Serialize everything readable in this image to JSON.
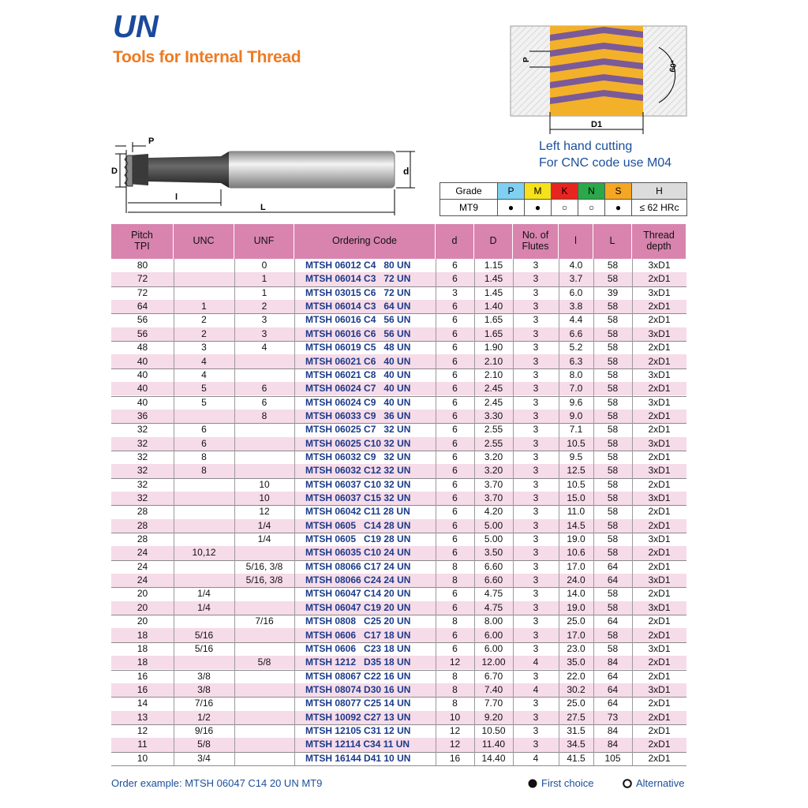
{
  "header": {
    "title": "UN",
    "subtitle": "Tools for Internal Thread"
  },
  "tool_drawing": {
    "labels": {
      "p": "P",
      "D": "D",
      "l": "l",
      "L": "L",
      "d": "d"
    }
  },
  "thread_drawing": {
    "labels": {
      "p": "P",
      "angle": "60°",
      "d1": "D1"
    }
  },
  "notes": [
    "Left hand cutting",
    "For CNC code use M04"
  ],
  "grade_table": {
    "header": [
      "Grade",
      "P",
      "M",
      "K",
      "N",
      "S",
      "H"
    ],
    "rows": [
      [
        "MT9",
        "●",
        "●",
        "○",
        "○",
        "●",
        "≤ 62 HRc"
      ]
    ]
  },
  "table": {
    "columns": [
      "Pitch\nTPI",
      "UNC",
      "UNF",
      "Ordering Code",
      "d",
      "D",
      "No. of\nFlutes",
      "l",
      "L",
      "Thread\ndepth"
    ],
    "rows": [
      [
        "80",
        null,
        "0",
        "MTSH 06012 C4   80 UN",
        "6",
        "1.15",
        "3",
        "4.0",
        "58",
        "3xD1"
      ],
      [
        "72",
        null,
        "1",
        "MTSH 06014 C3   72 UN",
        "6",
        "1.45",
        "3",
        "3.7",
        "58",
        "2xD1"
      ],
      [
        "72",
        null,
        "1",
        "MTSH 03015 C6   72 UN",
        "3",
        "1.45",
        "3",
        "6.0",
        "39",
        "3xD1"
      ],
      [
        "64",
        "1",
        "2",
        "MTSH 06014 C3   64 UN",
        "6",
        "1.40",
        "3",
        "3.8",
        "58",
        "2xD1"
      ],
      [
        "56",
        "2",
        "3",
        "MTSH 06016 C4   56 UN",
        "6",
        "1.65",
        "3",
        "4.4",
        "58",
        "2xD1"
      ],
      [
        "56",
        "2",
        "3",
        "MTSH 06016 C6   56 UN",
        "6",
        "1.65",
        "3",
        "6.6",
        "58",
        "3xD1"
      ],
      [
        "48",
        "3",
        "4",
        "MTSH 06019 C5   48 UN",
        "6",
        "1.90",
        "3",
        "5.2",
        "58",
        "2xD1"
      ],
      [
        "40",
        "4",
        null,
        "MTSH 06021 C6   40 UN",
        "6",
        "2.10",
        "3",
        "6.3",
        "58",
        "2xD1"
      ],
      [
        "40",
        "4",
        null,
        "MTSH 06021 C8   40 UN",
        "6",
        "2.10",
        "3",
        "8.0",
        "58",
        "3xD1"
      ],
      [
        "40",
        "5",
        "6",
        "MTSH 06024 C7   40 UN",
        "6",
        "2.45",
        "3",
        "7.0",
        "58",
        "2xD1"
      ],
      [
        "40",
        "5",
        "6",
        "MTSH 06024 C9   40 UN",
        "6",
        "2.45",
        "3",
        "9.6",
        "58",
        "3xD1"
      ],
      [
        "36",
        null,
        "8",
        "MTSH 06033 C9   36 UN",
        "6",
        "3.30",
        "3",
        "9.0",
        "58",
        "2xD1"
      ],
      [
        "32",
        "6",
        null,
        "MTSH 06025 C7   32 UN",
        "6",
        "2.55",
        "3",
        "7.1",
        "58",
        "2xD1"
      ],
      [
        "32",
        "6",
        null,
        "MTSH 06025 C10 32 UN",
        "6",
        "2.55",
        "3",
        "10.5",
        "58",
        "3xD1"
      ],
      [
        "32",
        "8",
        null,
        "MTSH 06032 C9   32 UN",
        "6",
        "3.20",
        "3",
        "9.5",
        "58",
        "2xD1"
      ],
      [
        "32",
        "8",
        null,
        "MTSH 06032 C12 32 UN",
        "6",
        "3.20",
        "3",
        "12.5",
        "58",
        "3xD1"
      ],
      [
        "32",
        null,
        "10",
        "MTSH 06037 C10 32 UN",
        "6",
        "3.70",
        "3",
        "10.5",
        "58",
        "2xD1"
      ],
      [
        "32",
        null,
        "10",
        "MTSH 06037 C15 32 UN",
        "6",
        "3.70",
        "3",
        "15.0",
        "58",
        "3xD1"
      ],
      [
        "28",
        null,
        "12",
        "MTSH 06042 C11 28 UN",
        "6",
        "4.20",
        "3",
        "11.0",
        "58",
        "2xD1"
      ],
      [
        "28",
        null,
        "1/4",
        "MTSH 0605   C14 28 UN",
        "6",
        "5.00",
        "3",
        "14.5",
        "58",
        "2xD1"
      ],
      [
        "28",
        null,
        "1/4",
        "MTSH 0605   C19 28 UN",
        "6",
        "5.00",
        "3",
        "19.0",
        "58",
        "3xD1"
      ],
      [
        "24",
        "10,12",
        null,
        "MTSH 06035 C10 24 UN",
        "6",
        "3.50",
        "3",
        "10.6",
        "58",
        "2xD1"
      ],
      [
        "24",
        null,
        "5/16, 3/8",
        "MTSH 08066 C17 24 UN",
        "8",
        "6.60",
        "3",
        "17.0",
        "64",
        "2xD1"
      ],
      [
        "24",
        null,
        "5/16, 3/8",
        "MTSH 08066 C24 24 UN",
        "8",
        "6.60",
        "3",
        "24.0",
        "64",
        "3xD1"
      ],
      [
        "20",
        "1/4",
        null,
        "MTSH 06047 C14 20 UN",
        "6",
        "4.75",
        "3",
        "14.0",
        "58",
        "2xD1"
      ],
      [
        "20",
        "1/4",
        null,
        "MTSH 06047 C19 20 UN",
        "6",
        "4.75",
        "3",
        "19.0",
        "58",
        "3xD1"
      ],
      [
        "20",
        null,
        "7/16",
        "MTSH 0808   C25 20 UN",
        "8",
        "8.00",
        "3",
        "25.0",
        "64",
        "2xD1"
      ],
      [
        "18",
        "5/16",
        null,
        "MTSH 0606   C17 18 UN",
        "6",
        "6.00",
        "3",
        "17.0",
        "58",
        "2xD1"
      ],
      [
        "18",
        "5/16",
        null,
        "MTSH 0606   C23 18 UN",
        "6",
        "6.00",
        "3",
        "23.0",
        "58",
        "3xD1"
      ],
      [
        "18",
        null,
        "5/8",
        "MTSH 1212   D35 18 UN",
        "12",
        "12.00",
        "4",
        "35.0",
        "84",
        "2xD1"
      ],
      [
        "16",
        "3/8",
        null,
        "MTSH 08067 C22 16 UN",
        "8",
        "6.70",
        "3",
        "22.0",
        "64",
        "2xD1"
      ],
      [
        "16",
        "3/8",
        null,
        "MTSH 08074 D30 16 UN",
        "8",
        "7.40",
        "4",
        "30.2",
        "64",
        "3xD1"
      ],
      [
        "14",
        "7/16",
        null,
        "MTSH 08077 C25 14 UN",
        "8",
        "7.70",
        "3",
        "25.0",
        "64",
        "2xD1"
      ],
      [
        "13",
        "1/2",
        null,
        "MTSH 10092 C27 13 UN",
        "10",
        "9.20",
        "3",
        "27.5",
        "73",
        "2xD1"
      ],
      [
        "12",
        "9/16",
        null,
        "MTSH 12105 C31 12 UN",
        "12",
        "10.50",
        "3",
        "31.5",
        "84",
        "2xD1"
      ],
      [
        "11",
        "5/8",
        null,
        "MTSH 12114 C34 11 UN",
        "12",
        "11.40",
        "3",
        "34.5",
        "84",
        "2xD1"
      ],
      [
        "10",
        "3/4",
        null,
        "MTSH 16144 D41 10 UN",
        "16",
        "14.40",
        "4",
        "41.5",
        "105",
        "2xD1"
      ]
    ]
  },
  "footer": {
    "order_example": "Order example: MTSH 06047 C14 20 UN MT9",
    "legend": [
      "First choice",
      "Alternative"
    ]
  }
}
